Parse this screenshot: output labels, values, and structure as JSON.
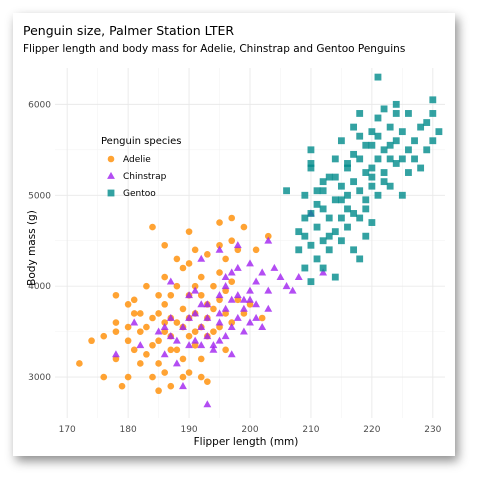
{
  "chart_data": {
    "type": "scatter",
    "title": "Penguin size, Palmer Station LTER",
    "subtitle": "Flipper length and body mass for Adelie, Chinstrap and Gentoo Penguins",
    "xlabel": "Flipper length (mm)",
    "ylabel": "Body mass (g)",
    "xlim": [
      168,
      232
    ],
    "ylim": [
      2550,
      6400
    ],
    "x_ticks": [
      170,
      180,
      190,
      200,
      210,
      220,
      230
    ],
    "y_ticks": [
      3000,
      4000,
      5000,
      6000
    ],
    "grid": true,
    "legend_title": "Penguin species",
    "legend_position": "inside-top-left",
    "series": [
      {
        "name": "Adelie",
        "color": "#FF8C00",
        "marker": "circle",
        "points": [
          [
            172,
            3150
          ],
          [
            174,
            3400
          ],
          [
            176,
            3450
          ],
          [
            178,
            3200
          ],
          [
            178,
            3500
          ],
          [
            178,
            3900
          ],
          [
            179,
            2900
          ],
          [
            180,
            3550
          ],
          [
            180,
            3800
          ],
          [
            180,
            3000
          ],
          [
            181,
            3700
          ],
          [
            181,
            3300
          ],
          [
            182,
            3150
          ],
          [
            182,
            3500
          ],
          [
            182,
            3700
          ],
          [
            183,
            3550
          ],
          [
            183,
            3250
          ],
          [
            184,
            3350
          ],
          [
            184,
            3650
          ],
          [
            184,
            3000
          ],
          [
            185,
            3400
          ],
          [
            185,
            3700
          ],
          [
            185,
            3900
          ],
          [
            185,
            2850
          ],
          [
            185,
            3150
          ],
          [
            186,
            3500
          ],
          [
            186,
            4100
          ],
          [
            186,
            3050
          ],
          [
            186,
            3800
          ],
          [
            187,
            3650
          ],
          [
            187,
            3300
          ],
          [
            187,
            3900
          ],
          [
            187,
            2900
          ],
          [
            187,
            3450
          ],
          [
            188,
            3600
          ],
          [
            188,
            3300
          ],
          [
            188,
            4000
          ],
          [
            189,
            3550
          ],
          [
            189,
            3200
          ],
          [
            189,
            3750
          ],
          [
            189,
            4200
          ],
          [
            190,
            3450
          ],
          [
            190,
            3650
          ],
          [
            190,
            3900
          ],
          [
            190,
            3050
          ],
          [
            190,
            4250
          ],
          [
            191,
            3700
          ],
          [
            191,
            3350
          ],
          [
            191,
            4000
          ],
          [
            191,
            3500
          ],
          [
            192,
            3550
          ],
          [
            192,
            3900
          ],
          [
            192,
            4100
          ],
          [
            192,
            3200
          ],
          [
            192,
            3000
          ],
          [
            193,
            3800
          ],
          [
            193,
            3450
          ],
          [
            193,
            3650
          ],
          [
            193,
            2950
          ],
          [
            193,
            4350
          ],
          [
            194,
            3500
          ],
          [
            194,
            4000
          ],
          [
            194,
            3750
          ],
          [
            195,
            3550
          ],
          [
            195,
            4150
          ],
          [
            195,
            3850
          ],
          [
            195,
            4450
          ],
          [
            196,
            3700
          ],
          [
            196,
            3950
          ],
          [
            196,
            4300
          ],
          [
            196,
            3300
          ],
          [
            197,
            4050
          ],
          [
            197,
            3600
          ],
          [
            197,
            4500
          ],
          [
            197,
            4750
          ],
          [
            198,
            3850
          ],
          [
            198,
            4400
          ],
          [
            199,
            3700
          ],
          [
            199,
            4650
          ],
          [
            200,
            3800
          ],
          [
            201,
            4400
          ],
          [
            202,
            3650
          ],
          [
            203,
            4550
          ],
          [
            184,
            4650
          ],
          [
            181,
            3850
          ],
          [
            183,
            4000
          ],
          [
            176,
            3000
          ],
          [
            180,
            3400
          ],
          [
            186,
            3600
          ],
          [
            188,
            4300
          ],
          [
            190,
            4600
          ],
          [
            195,
            4700
          ],
          [
            191,
            4400
          ],
          [
            189,
            3000
          ],
          [
            178,
            3600
          ],
          [
            186,
            4450
          ]
        ]
      },
      {
        "name": "Chinstrap",
        "color": "#A020F0",
        "marker": "triangle",
        "points": [
          [
            178,
            3250
          ],
          [
            181,
            3600
          ],
          [
            185,
            3500
          ],
          [
            186,
            3250
          ],
          [
            187,
            3650
          ],
          [
            187,
            3450
          ],
          [
            188,
            3400
          ],
          [
            189,
            2900
          ],
          [
            190,
            3650
          ],
          [
            190,
            3350
          ],
          [
            191,
            3700
          ],
          [
            191,
            3400
          ],
          [
            192,
            3800
          ],
          [
            192,
            3550
          ],
          [
            193,
            3450
          ],
          [
            193,
            3650
          ],
          [
            194,
            3350
          ],
          [
            195,
            3900
          ],
          [
            195,
            3600
          ],
          [
            195,
            3700
          ],
          [
            196,
            3750
          ],
          [
            196,
            4000
          ],
          [
            196,
            3450
          ],
          [
            197,
            3550
          ],
          [
            197,
            3850
          ],
          [
            197,
            3250
          ],
          [
            198,
            3650
          ],
          [
            198,
            3900
          ],
          [
            198,
            4200
          ],
          [
            199,
            3750
          ],
          [
            199,
            3500
          ],
          [
            200,
            3600
          ],
          [
            200,
            3950
          ],
          [
            201,
            3800
          ],
          [
            201,
            4050
          ],
          [
            202,
            3550
          ],
          [
            202,
            4150
          ],
          [
            203,
            3950
          ],
          [
            203,
            3750
          ],
          [
            205,
            4100
          ],
          [
            206,
            4000
          ],
          [
            207,
            3950
          ],
          [
            208,
            4100
          ],
          [
            210,
            4800
          ],
          [
            212,
            4150
          ],
          [
            193,
            2700
          ],
          [
            190,
            3900
          ],
          [
            192,
            4300
          ],
          [
            194,
            3300
          ],
          [
            196,
            4100
          ],
          [
            198,
            4450
          ],
          [
            200,
            3850
          ],
          [
            195,
            4400
          ],
          [
            201,
            3650
          ],
          [
            199,
            3850
          ],
          [
            197,
            4150
          ],
          [
            193,
            3800
          ],
          [
            189,
            3550
          ],
          [
            191,
            3950
          ],
          [
            200,
            4250
          ],
          [
            204,
            4200
          ],
          [
            188,
            3150
          ],
          [
            186,
            3550
          ],
          [
            192,
            3350
          ],
          [
            195,
            3400
          ],
          [
            187,
            4050
          ],
          [
            182,
            3350
          ],
          [
            203,
            4500
          ]
        ]
      },
      {
        "name": "Gentoo",
        "color": "#008B8B",
        "marker": "square",
        "points": [
          [
            208,
            4600
          ],
          [
            208,
            4400
          ],
          [
            209,
            4750
          ],
          [
            209,
            4200
          ],
          [
            209,
            5000
          ],
          [
            210,
            4450
          ],
          [
            210,
            4050
          ],
          [
            210,
            4800
          ],
          [
            210,
            5300
          ],
          [
            210,
            5500
          ],
          [
            211,
            4650
          ],
          [
            211,
            4300
          ],
          [
            211,
            4900
          ],
          [
            212,
            4500
          ],
          [
            212,
            5150
          ],
          [
            212,
            4850
          ],
          [
            212,
            4200
          ],
          [
            213,
            4750
          ],
          [
            213,
            5200
          ],
          [
            213,
            4400
          ],
          [
            214,
            4600
          ],
          [
            214,
            4950
          ],
          [
            214,
            5400
          ],
          [
            214,
            4100
          ],
          [
            215,
            4750
          ],
          [
            215,
            5100
          ],
          [
            215,
            5600
          ],
          [
            215,
            4500
          ],
          [
            216,
            4850
          ],
          [
            216,
            5300
          ],
          [
            216,
            4650
          ],
          [
            216,
            5000
          ],
          [
            217,
            4800
          ],
          [
            217,
            5450
          ],
          [
            217,
            5750
          ],
          [
            217,
            4400
          ],
          [
            218,
            5050
          ],
          [
            218,
            5400
          ],
          [
            218,
            4750
          ],
          [
            218,
            5900
          ],
          [
            219,
            5250
          ],
          [
            219,
            4950
          ],
          [
            219,
            5550
          ],
          [
            219,
            4850
          ],
          [
            220,
            5300
          ],
          [
            220,
            5700
          ],
          [
            220,
            5100
          ],
          [
            220,
            5550
          ],
          [
            220,
            4700
          ],
          [
            221,
            5400
          ],
          [
            221,
            5000
          ],
          [
            221,
            5850
          ],
          [
            221,
            5650
          ],
          [
            222,
            5150
          ],
          [
            222,
            5500
          ],
          [
            222,
            5950
          ],
          [
            222,
            5250
          ],
          [
            223,
            5400
          ],
          [
            223,
            5750
          ],
          [
            223,
            5550
          ],
          [
            224,
            5350
          ],
          [
            224,
            5600
          ],
          [
            224,
            5900
          ],
          [
            225,
            5000
          ],
          [
            225,
            5400
          ],
          [
            225,
            5700
          ],
          [
            226,
            5250
          ],
          [
            226,
            5500
          ],
          [
            226,
            5900
          ],
          [
            227,
            5600
          ],
          [
            228,
            5300
          ],
          [
            228,
            5750
          ],
          [
            229,
            5800
          ],
          [
            229,
            5500
          ],
          [
            230,
            5600
          ],
          [
            230,
            5900
          ],
          [
            230,
            6050
          ],
          [
            231,
            5700
          ],
          [
            221,
            6300
          ],
          [
            212,
            5050
          ],
          [
            213,
            4550
          ],
          [
            215,
            4950
          ],
          [
            216,
            5350
          ],
          [
            217,
            5150
          ],
          [
            210,
            5350
          ],
          [
            209,
            4550
          ],
          [
            211,
            5050
          ],
          [
            220,
            5200
          ],
          [
            219,
            4550
          ],
          [
            214,
            5200
          ],
          [
            218,
            5650
          ],
          [
            223,
            5100
          ],
          [
            227,
            5400
          ],
          [
            206,
            5050
          ],
          [
            224,
            6000
          ],
          [
            218,
            4300
          ]
        ]
      }
    ]
  }
}
